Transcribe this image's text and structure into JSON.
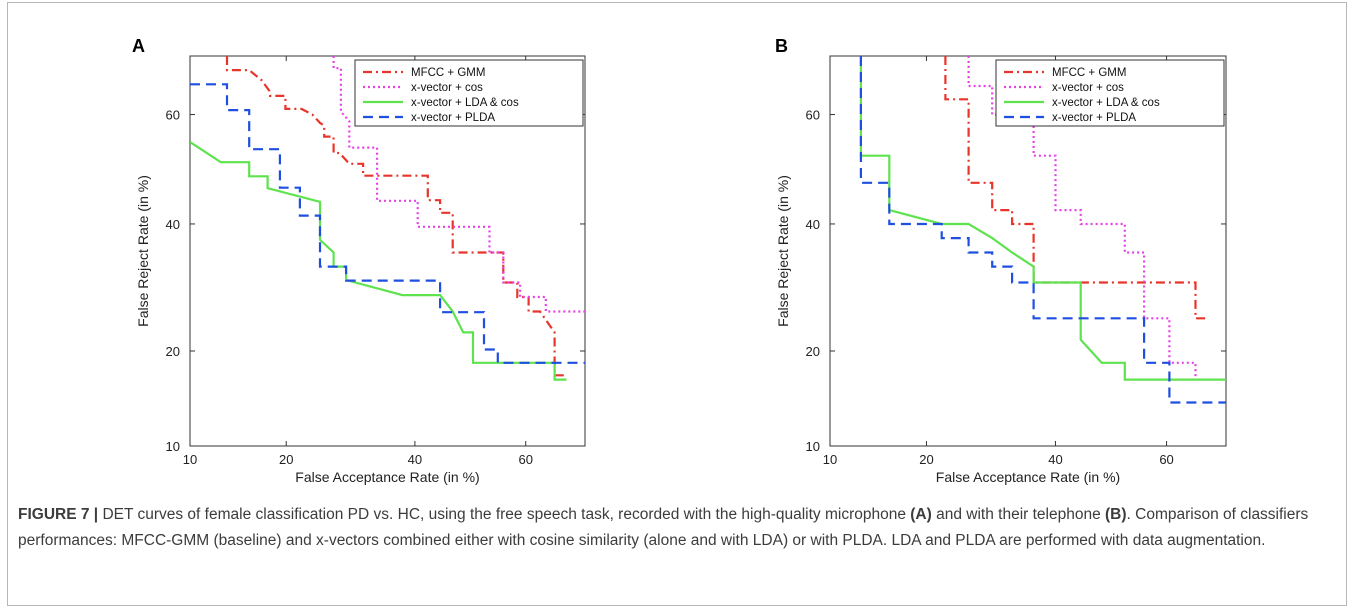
{
  "chart_data": [
    {
      "panel": "A",
      "type": "line",
      "xlabel": "False Acceptance Rate (in %)",
      "ylabel": "False Reject Rate (in %)",
      "xlim": [
        10,
        70
      ],
      "ylim": [
        10,
        70
      ],
      "y_scale": "probit",
      "xticks": [
        "10",
        "20",
        "40",
        "60"
      ],
      "yticks": [
        "10",
        "20",
        "40",
        "60"
      ],
      "grid": false,
      "legend": "top-right",
      "series": [
        {
          "name": "MFCC + GMM",
          "color": "#e8352b",
          "dash": "dashdot",
          "points": [
            [
              13.3,
              70
            ],
            [
              13.3,
              67.7
            ],
            [
              15.6,
              67.7
            ],
            [
              17,
              66
            ],
            [
              18,
              64
            ],
            [
              18,
              63.3
            ],
            [
              19.9,
              63.3
            ],
            [
              19.9,
              61
            ],
            [
              22,
              61
            ],
            [
              23.5,
              60
            ],
            [
              24.6,
              58.5
            ],
            [
              25.2,
              58
            ],
            [
              25.2,
              56
            ],
            [
              26.6,
              56
            ],
            [
              26.6,
              53
            ],
            [
              27.5,
              53
            ],
            [
              29,
              51
            ],
            [
              31.2,
              51
            ],
            [
              31.2,
              48.8
            ],
            [
              42.3,
              48.8
            ],
            [
              42.3,
              44.3
            ],
            [
              44.5,
              44.3
            ],
            [
              44.5,
              42
            ],
            [
              46.8,
              42
            ],
            [
              46.8,
              35
            ],
            [
              56,
              35
            ],
            [
              56,
              30
            ],
            [
              58.5,
              30
            ],
            [
              58.5,
              27.7
            ],
            [
              60.5,
              27.7
            ],
            [
              60.5,
              25.5
            ],
            [
              62.5,
              25.5
            ],
            [
              65,
              22.5
            ],
            [
              65,
              17
            ],
            [
              67,
              17
            ]
          ]
        },
        {
          "name": "x-vector + cos",
          "color": "#e641e6",
          "dash": "dotted",
          "points": [
            [
              26.6,
              70
            ],
            [
              26.6,
              68
            ],
            [
              27.7,
              68
            ],
            [
              27.7,
              60.5
            ],
            [
              29,
              58.8
            ],
            [
              29,
              54
            ],
            [
              33.5,
              54
            ],
            [
              33.5,
              44.2
            ],
            [
              40.5,
              44.2
            ],
            [
              40.5,
              39.5
            ],
            [
              53.5,
              39.5
            ],
            [
              53.5,
              35
            ],
            [
              56,
              35
            ],
            [
              56,
              30
            ],
            [
              59,
              30
            ],
            [
              59,
              27.7
            ],
            [
              63.5,
              27.7
            ],
            [
              63.5,
              25.5
            ],
            [
              70,
              25.5
            ]
          ]
        },
        {
          "name": "x-vector + LDA & cos",
          "color": "#5ee34f",
          "dash": "solid",
          "points": [
            [
              10,
              55
            ],
            [
              12.7,
              51.3
            ],
            [
              15.6,
              51.3
            ],
            [
              15.6,
              48.7
            ],
            [
              17.7,
              48.7
            ],
            [
              17.7,
              46.5
            ],
            [
              24.6,
              44
            ],
            [
              24.6,
              37.2
            ],
            [
              26.6,
              35
            ],
            [
              26.6,
              32.6
            ],
            [
              28.5,
              32.6
            ],
            [
              28.5,
              30.4
            ],
            [
              37.8,
              28
            ],
            [
              44.5,
              28
            ],
            [
              46.8,
              25.5
            ],
            [
              48.7,
              22.5
            ],
            [
              50.5,
              22.5
            ],
            [
              50.5,
              18.5
            ],
            [
              65,
              18.5
            ],
            [
              65,
              16.5
            ],
            [
              67,
              16.5
            ]
          ]
        },
        {
          "name": "x-vector + PLDA",
          "color": "#1f4fe0",
          "dash": "dashed",
          "points": [
            [
              10,
              65.3
            ],
            [
              13.3,
              65.3
            ],
            [
              13.3,
              60.8
            ],
            [
              15.6,
              60.8
            ],
            [
              15.6,
              53.7
            ],
            [
              19.2,
              53.7
            ],
            [
              19.2,
              46.6
            ],
            [
              21.8,
              46.6
            ],
            [
              21.8,
              41.5
            ],
            [
              24.6,
              41.5
            ],
            [
              24.6,
              32.6
            ],
            [
              28.5,
              32.6
            ],
            [
              28.5,
              30.3
            ],
            [
              44.5,
              30.3
            ],
            [
              44.5,
              25.4
            ],
            [
              52.5,
              25.4
            ],
            [
              52.5,
              20.2
            ],
            [
              55,
              20.2
            ],
            [
              55,
              18.5
            ],
            [
              70,
              18.5
            ]
          ]
        }
      ]
    },
    {
      "panel": "B",
      "type": "line",
      "xlabel": "False Acceptance Rate (in %)",
      "ylabel": "False Reject Rate (in %)",
      "xlim": [
        10,
        70
      ],
      "ylim": [
        10,
        70
      ],
      "y_scale": "probit",
      "xticks": [
        "10",
        "20",
        "40",
        "60"
      ],
      "yticks": [
        "10",
        "20",
        "40",
        "60"
      ],
      "grid": false,
      "legend": "top-right",
      "series": [
        {
          "name": "MFCC + GMM",
          "color": "#e8352b",
          "dash": "dashdot",
          "points": [
            [
              22.5,
              70
            ],
            [
              22.5,
              62.7
            ],
            [
              25.8,
              62.7
            ],
            [
              25.8,
              47.5
            ],
            [
              29.4,
              47.5
            ],
            [
              29.4,
              42.5
            ],
            [
              32.6,
              42.5
            ],
            [
              32.6,
              40
            ],
            [
              36.2,
              40
            ],
            [
              36.2,
              30
            ],
            [
              65,
              30
            ],
            [
              65,
              24.5
            ],
            [
              67,
              24.5
            ]
          ]
        },
        {
          "name": "x-vector + cos",
          "color": "#e641e6",
          "dash": "dotted",
          "points": [
            [
              25.8,
              70
            ],
            [
              25.8,
              65
            ],
            [
              29.4,
              65
            ],
            [
              29.4,
              60
            ],
            [
              36.2,
              60
            ],
            [
              36.2,
              52.5
            ],
            [
              40,
              52.5
            ],
            [
              40,
              42.5
            ],
            [
              44.5,
              42.5
            ],
            [
              44.5,
              40
            ],
            [
              52.5,
              40
            ],
            [
              52.5,
              35
            ],
            [
              56,
              35
            ],
            [
              56,
              24.5
            ],
            [
              60.5,
              24.5
            ],
            [
              60.5,
              18.5
            ],
            [
              65,
              18.5
            ],
            [
              65,
              16.5
            ]
          ]
        },
        {
          "name": "x-vector + LDA & cos",
          "color": "#5ee34f",
          "dash": "solid",
          "points": [
            [
              12.7,
              70
            ],
            [
              12.7,
              52.5
            ],
            [
              15.6,
              52.5
            ],
            [
              15.6,
              42.5
            ],
            [
              22,
              40
            ],
            [
              25.8,
              40
            ],
            [
              29.4,
              37.5
            ],
            [
              32.6,
              35
            ],
            [
              36.2,
              32.6
            ],
            [
              36.2,
              30
            ],
            [
              44.5,
              30
            ],
            [
              44.5,
              21.5
            ],
            [
              48.3,
              18.5
            ],
            [
              52.5,
              18.5
            ],
            [
              52.5,
              16.5
            ],
            [
              70,
              16.5
            ]
          ]
        },
        {
          "name": "x-vector + PLDA",
          "color": "#1f4fe0",
          "dash": "dashed",
          "points": [
            [
              12.7,
              70
            ],
            [
              12.7,
              47.5
            ],
            [
              15.6,
              47.5
            ],
            [
              15.6,
              40
            ],
            [
              22,
              40
            ],
            [
              22,
              37.5
            ],
            [
              25.8,
              37.5
            ],
            [
              25.8,
              35
            ],
            [
              29.4,
              35
            ],
            [
              29.4,
              32.6
            ],
            [
              32.6,
              32.6
            ],
            [
              32.6,
              30
            ],
            [
              36.2,
              30
            ],
            [
              36.2,
              24.5
            ],
            [
              56,
              24.5
            ],
            [
              56,
              18.5
            ],
            [
              60.5,
              18.5
            ],
            [
              60.5,
              14
            ],
            [
              70,
              14
            ]
          ]
        }
      ]
    }
  ],
  "caption": {
    "label": "FIGURE 7 |",
    "segments": [
      {
        "text": " DET curves of female classification PD vs. HC, using the free speech task, recorded with the high-quality microphone ",
        "bold": false
      },
      {
        "text": "(A)",
        "bold": true
      },
      {
        "text": " and with their telephone ",
        "bold": false
      },
      {
        "text": "(B)",
        "bold": true
      },
      {
        "text": ". Comparison of classifiers performances: MFCC-GMM (baseline) and x-vectors combined either with cosine similarity (alone and with LDA) or with PLDA. LDA and PLDA are performed with data augmentation.",
        "bold": false
      }
    ]
  }
}
